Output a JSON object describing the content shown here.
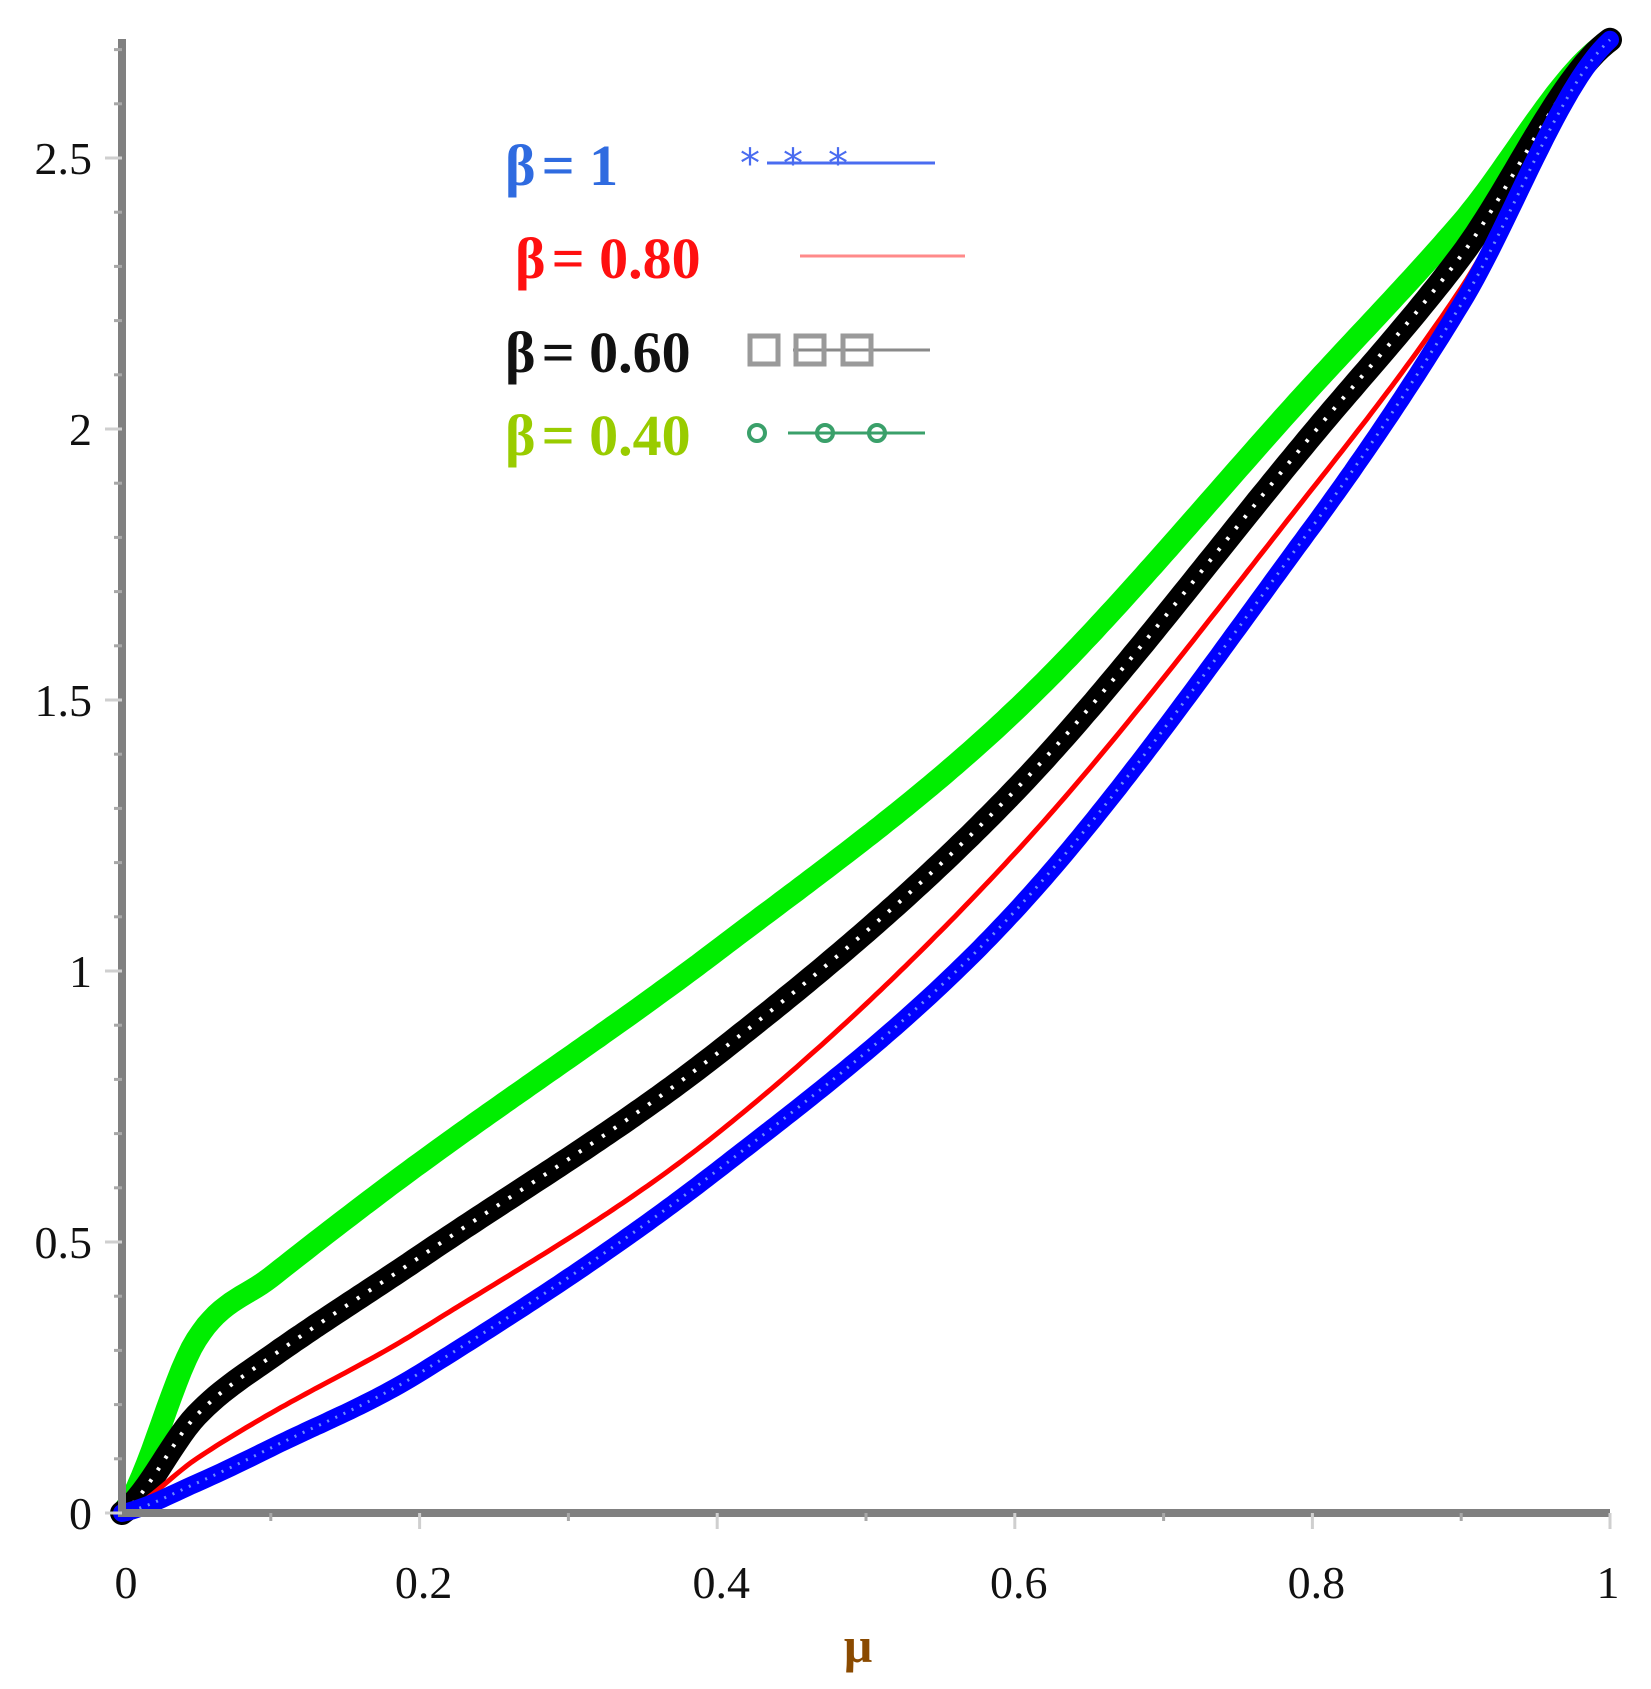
{
  "chart_data": {
    "type": "line",
    "title": "",
    "xlabel": "μ",
    "ylabel": "",
    "xlim": [
      0,
      1
    ],
    "ylim": [
      0,
      2.72
    ],
    "grid": false,
    "legend_position": "upper-left (inside)",
    "x_ticks": [
      "0",
      "0.2",
      "0.4",
      "0.6",
      "0.8",
      "1"
    ],
    "y_ticks": [
      "0",
      "0.5",
      "1",
      "1.5",
      "2",
      "2.5"
    ],
    "x": [
      0,
      0.05,
      0.1,
      0.2,
      0.4,
      0.6,
      0.8,
      0.9,
      1.0
    ],
    "series": [
      {
        "name": "β = 1",
        "label_prefix": "β",
        "label_value": "= 1",
        "color": "#0000ff",
        "text_color": "#2f6be0",
        "marker": "asterisk",
        "legend_marker_color": "#4a6cf0",
        "values": [
          0,
          0.055,
          0.12,
          0.258,
          0.632,
          1.11,
          1.82,
          2.23,
          2.718
        ]
      },
      {
        "name": "β = 0.80",
        "label_prefix": "β",
        "label_value": "= 0.80",
        "color": "#ff0000",
        "text_color": "#ff1010",
        "marker": "none",
        "legend_marker_color": "#ff8a8a",
        "values": [
          0,
          0.1,
          0.184,
          0.337,
          0.7,
          1.217,
          1.89,
          2.26,
          2.718
        ]
      },
      {
        "name": "β = 0.60",
        "label_prefix": "β",
        "label_value": "= 0.60",
        "color": "#000000",
        "text_color": "#111111",
        "marker": "square",
        "legend_marker_color": "#8a8a8a",
        "values": [
          0,
          0.18,
          0.288,
          0.472,
          0.848,
          1.333,
          1.99,
          2.32,
          2.718
        ]
      },
      {
        "name": "β = 0.40",
        "label_prefix": "β",
        "label_value": "= 0.40",
        "color": "#00ee00",
        "text_color": "#99cc00",
        "marker": "circle",
        "legend_marker_color": "#3aa06a",
        "values": [
          0,
          0.32,
          0.435,
          0.645,
          1.038,
          1.48,
          2.08,
          2.38,
          2.718
        ]
      }
    ]
  }
}
